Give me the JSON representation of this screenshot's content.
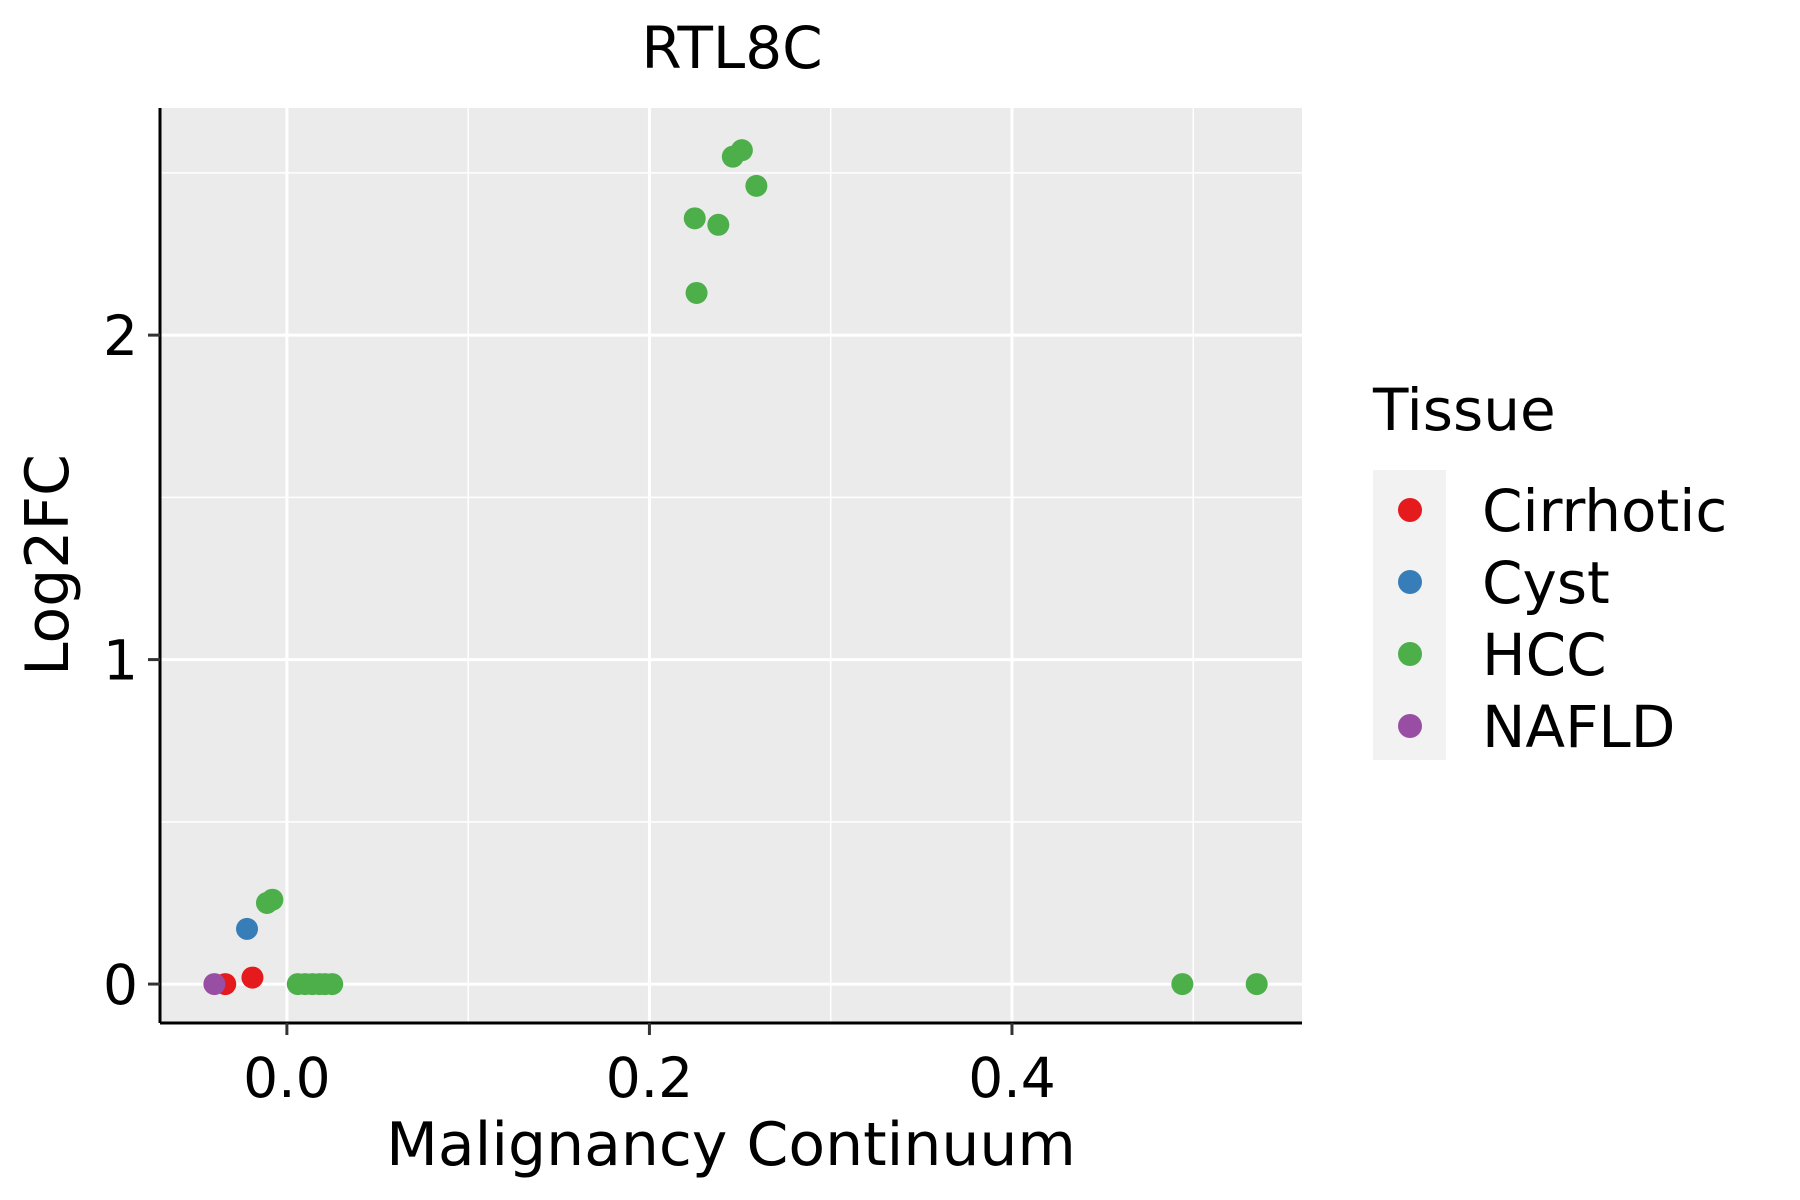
{
  "chart_data": {
    "type": "scatter",
    "title": "RTL8C",
    "xlabel": "Malignancy Continuum",
    "ylabel": "Log2FC",
    "xlim": [
      -0.07,
      0.56
    ],
    "ylim": [
      -0.12,
      2.7
    ],
    "x_ticks": [
      0.0,
      0.2,
      0.4
    ],
    "x_tick_labels": [
      "0.0",
      "0.2",
      "0.4"
    ],
    "x_minor_ticks": [
      0.1,
      0.3,
      0.5
    ],
    "y_ticks": [
      0,
      1,
      2
    ],
    "y_tick_labels": [
      "0",
      "1",
      "2"
    ],
    "y_minor_ticks": [
      0.5,
      1.5,
      2.5
    ],
    "grid": true,
    "legend": {
      "title": "Tissue",
      "position": "right"
    },
    "series": [
      {
        "name": "Cirrhotic",
        "color": "#e41a1c",
        "points": [
          {
            "x": -0.034,
            "y": 0.0
          },
          {
            "x": -0.019,
            "y": 0.02
          }
        ]
      },
      {
        "name": "Cyst",
        "color": "#377eb8",
        "points": [
          {
            "x": -0.022,
            "y": 0.17
          }
        ]
      },
      {
        "name": "HCC",
        "color": "#4daf4a",
        "points": [
          {
            "x": 0.225,
            "y": 2.36
          },
          {
            "x": 0.226,
            "y": 2.13
          },
          {
            "x": 0.238,
            "y": 2.34
          },
          {
            "x": 0.246,
            "y": 2.55
          },
          {
            "x": 0.251,
            "y": 2.57
          },
          {
            "x": 0.259,
            "y": 2.46
          },
          {
            "x": -0.011,
            "y": 0.25
          },
          {
            "x": -0.008,
            "y": 0.26
          },
          {
            "x": 0.006,
            "y": 0.0
          },
          {
            "x": 0.01,
            "y": 0.0
          },
          {
            "x": 0.014,
            "y": 0.0
          },
          {
            "x": 0.018,
            "y": 0.0
          },
          {
            "x": 0.021,
            "y": 0.0
          },
          {
            "x": 0.025,
            "y": 0.0
          },
          {
            "x": 0.494,
            "y": 0.0
          },
          {
            "x": 0.535,
            "y": 0.0
          }
        ]
      },
      {
        "name": "NAFLD",
        "color": "#984ea3",
        "points": [
          {
            "x": -0.04,
            "y": 0.0
          }
        ]
      }
    ]
  }
}
